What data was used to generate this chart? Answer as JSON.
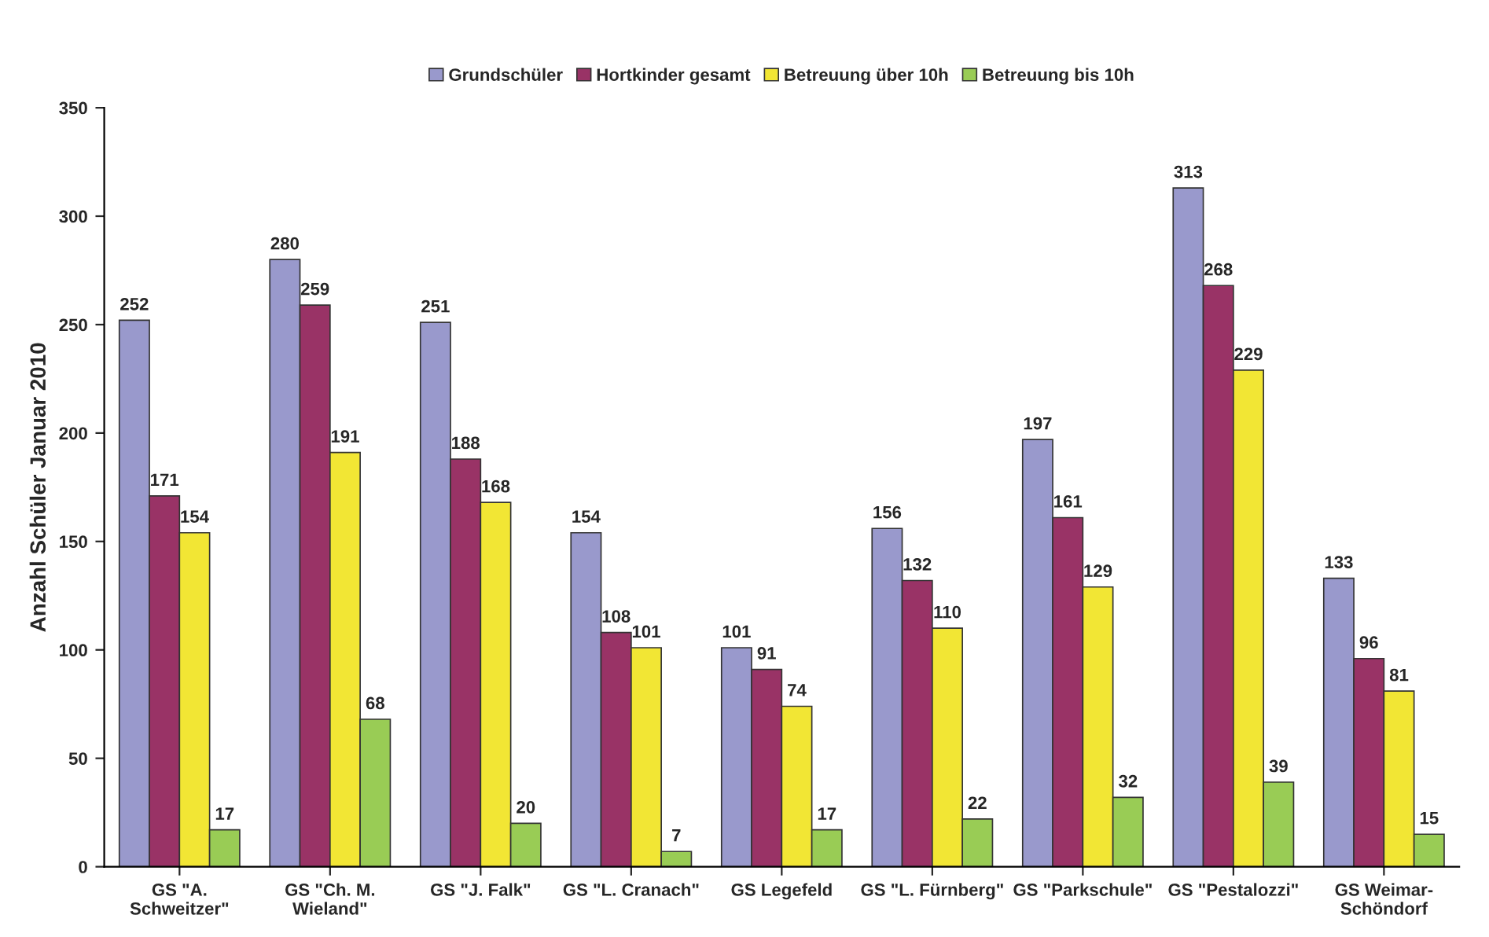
{
  "chart_data": {
    "type": "bar",
    "ylabel": "Anzahl Schüler Januar 2010",
    "categories": [
      "GS \"A.\nSchweitzer\"",
      "GS \"Ch. M.\nWieland\"",
      "GS \"J. Falk\"",
      "GS \"L. Cranach\"",
      "GS Legefeld",
      "GS \"L. Fürnberg\"",
      "GS \"Parkschule\"",
      "GS \"Pestalozzi\"",
      "GS Weimar-\nSchöndorf"
    ],
    "series": [
      {
        "name": "Grundschüler",
        "color": "#9999cc",
        "values": [
          252,
          280,
          251,
          154,
          101,
          156,
          197,
          313,
          133
        ]
      },
      {
        "name": "Hortkinder gesamt",
        "color": "#993366",
        "values": [
          171,
          259,
          188,
          108,
          91,
          132,
          161,
          268,
          96
        ]
      },
      {
        "name": "Betreuung über 10h",
        "color": "#f2e634",
        "values": [
          154,
          191,
          168,
          101,
          74,
          110,
          129,
          229,
          81
        ]
      },
      {
        "name": "Betreuung bis 10h",
        "color": "#99cc55",
        "values": [
          17,
          68,
          20,
          7,
          17,
          22,
          32,
          39,
          15
        ]
      }
    ],
    "ylim": [
      0,
      350
    ],
    "yticks": [
      0,
      50,
      100,
      150,
      200,
      250,
      300,
      350
    ],
    "grid": false,
    "legend": "top",
    "data_labels": true
  }
}
